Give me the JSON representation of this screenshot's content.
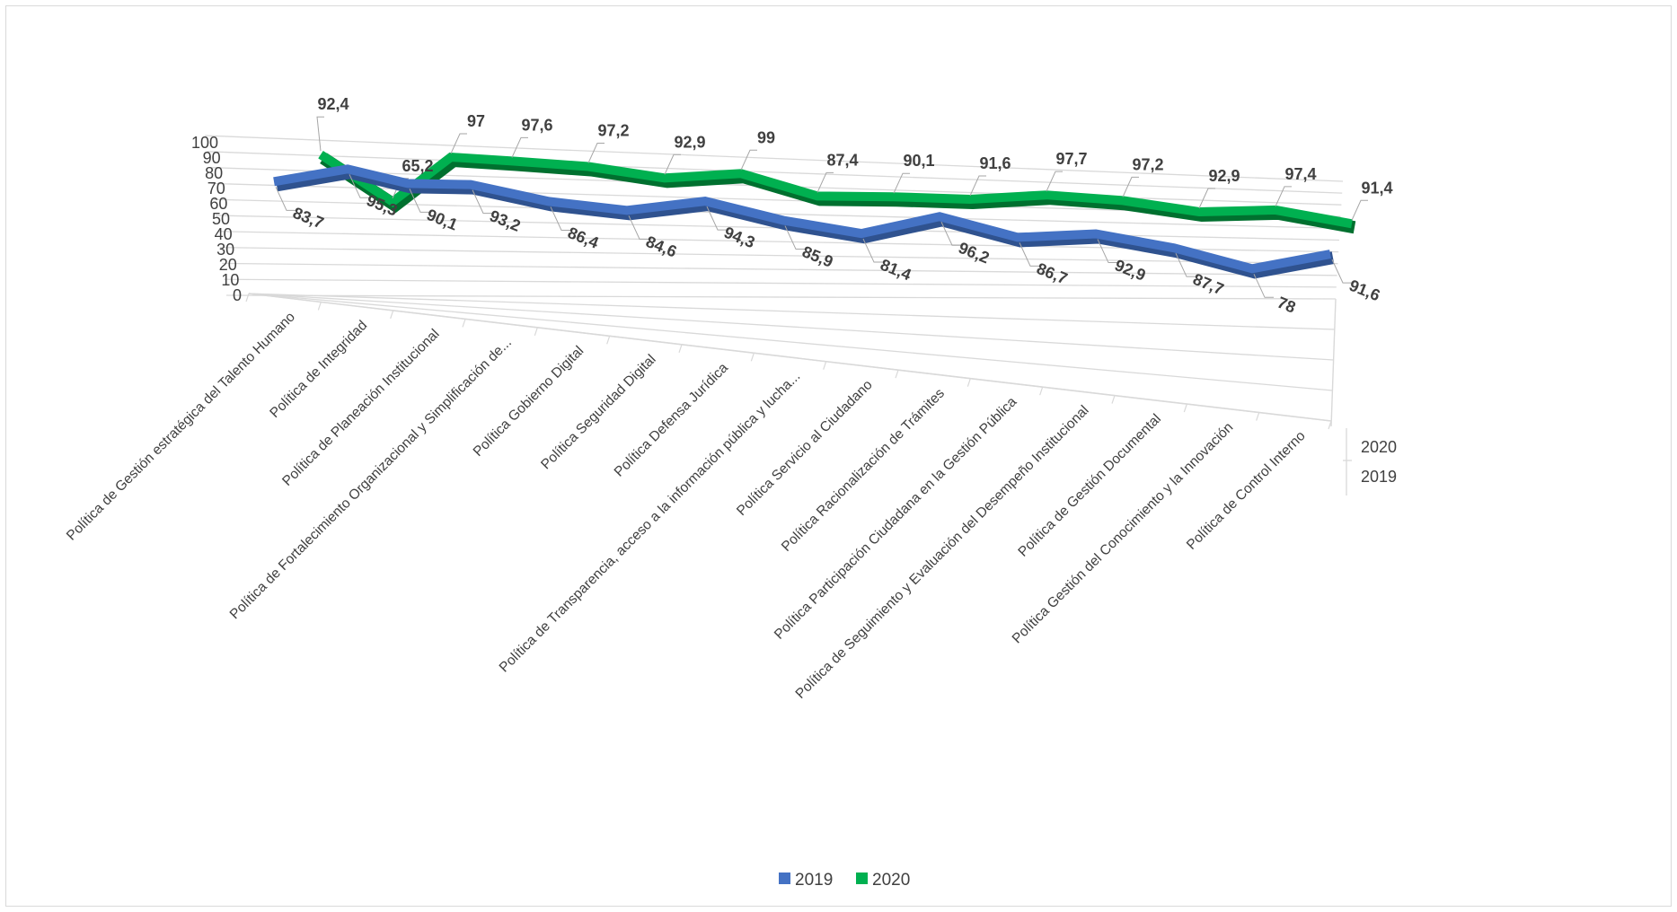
{
  "chart_data": {
    "type": "line",
    "title": "",
    "xlabel": "",
    "ylabel": "",
    "ylim": [
      0,
      100
    ],
    "yticks": [
      "0",
      "10",
      "20",
      "30",
      "40",
      "50",
      "60",
      "70",
      "80",
      "90",
      "100"
    ],
    "categories": [
      "Política de Gestión estratégica del Talento Humano",
      "Política de Integridad",
      "Política de Planeación Institucional",
      "Política de Fortalecimiento Organizacional y Simplificación de...",
      "Política Gobierno Digital",
      "Política Seguridad Digital",
      "Política Defensa Jurídica",
      "Política de Transparencia, acceso a la información pública y lucha...",
      "Política Servicio al Ciudadano",
      "Política Racionalización de Trámites",
      "Política Participación Ciudadana en la Gestión Pública",
      "Política de Seguimiento y Evaluación del Desempeño Institucional",
      "Política de Gestión Documental",
      "Política Gestión del Conocimiento y la Innovación",
      "Política de Control Interno"
    ],
    "series": [
      {
        "name": "2019",
        "color": "#4472c4",
        "values": [
          83.7,
          95.3,
          90.1,
          93.2,
          86.4,
          84.6,
          94.3,
          85.9,
          81.4,
          96.2,
          86.7,
          92.9,
          87.7,
          78,
          91.6
        ],
        "labels": [
          "83,7",
          "95,3",
          "90,1",
          "93,2",
          "86,4",
          "84,6",
          "94,3",
          "85,9",
          "81,4",
          "96,2",
          "86,7",
          "92,9",
          "87,7",
          "78",
          "91,6"
        ]
      },
      {
        "name": "2020",
        "color": "#00b050",
        "values": [
          92.4,
          65.2,
          97,
          97.6,
          97.2,
          92.9,
          99,
          87.4,
          90.1,
          91.6,
          97.7,
          97.2,
          92.9,
          97.4,
          91.4
        ],
        "labels": [
          "92,4",
          "65,2",
          "97",
          "97,6",
          "97,2",
          "92,9",
          "99",
          "87,4",
          "90,1",
          "91,6",
          "97,7",
          "97,2",
          "92,9",
          "97,4",
          "91,4"
        ]
      }
    ],
    "depth_labels": [
      "2020",
      "2019"
    ],
    "legend": {
      "position": "bottom",
      "items": [
        {
          "label": "2019",
          "color": "#4472c4"
        },
        {
          "label": "2020",
          "color": "#00b050"
        }
      ]
    }
  }
}
